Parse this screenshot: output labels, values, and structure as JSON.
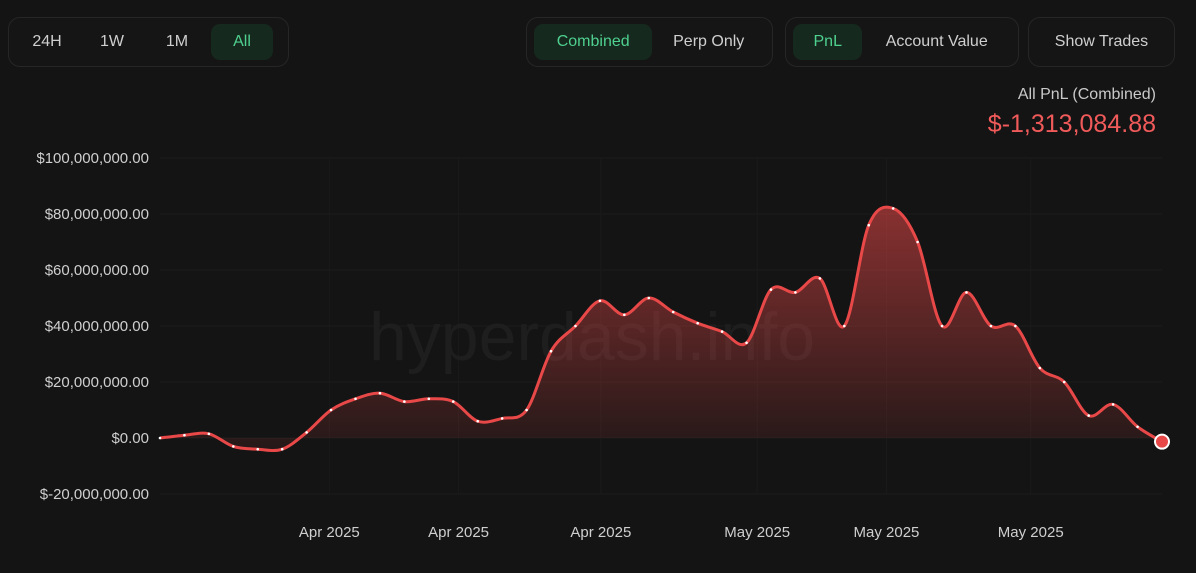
{
  "toolbar": {
    "ranges": [
      {
        "label": "24H",
        "active": false
      },
      {
        "label": "1W",
        "active": false
      },
      {
        "label": "1M",
        "active": false
      },
      {
        "label": "All",
        "active": true
      }
    ],
    "modes": [
      {
        "label": "Combined",
        "active": true
      },
      {
        "label": "Perp Only",
        "active": false
      }
    ],
    "metrics": [
      {
        "label": "PnL",
        "active": true
      },
      {
        "label": "Account Value",
        "active": false
      }
    ],
    "show_trades_label": "Show Trades"
  },
  "summary": {
    "label": "All PnL (Combined)",
    "value": "$-1,313,084.88"
  },
  "watermark": "hyperdash.info",
  "colors": {
    "line": "#e84848",
    "accent_green": "#4ed08e",
    "negative": "#f05a5a",
    "background": "#141414"
  },
  "chart_data": {
    "type": "area",
    "title": "",
    "xlabel": "",
    "ylabel": "",
    "ylim": [
      -20000000,
      100000000
    ],
    "y_ticks": [
      100000000,
      80000000,
      60000000,
      40000000,
      20000000,
      0,
      -20000000
    ],
    "y_tick_labels": [
      "$100,000,000.00",
      "$80,000,000.00",
      "$60,000,000.00",
      "$40,000,000.00",
      "$20,000,000.00",
      "$0.00",
      "$-20,000,000.00"
    ],
    "x_tick_labels": [
      "Apr 2025",
      "Apr 2025",
      "Apr 2025",
      "May 2025",
      "May 2025",
      "May 2025"
    ],
    "grid": true,
    "series": [
      {
        "values": [
          0,
          1000000,
          1500000,
          -3000000,
          -4000000,
          -4000000,
          2000000,
          10000000,
          14000000,
          16000000,
          13000000,
          14000000,
          13000000,
          6000000,
          7000000,
          10000000,
          31000000,
          40000000,
          49000000,
          44000000,
          50000000,
          45000000,
          41000000,
          38000000,
          34000000,
          53000000,
          52000000,
          57000000,
          40000000,
          76000000,
          82000000,
          70000000,
          40000000,
          52000000,
          40000000,
          40000000,
          25000000,
          20000000,
          8000000,
          12000000,
          4000000,
          -1313085
        ]
      }
    ]
  }
}
